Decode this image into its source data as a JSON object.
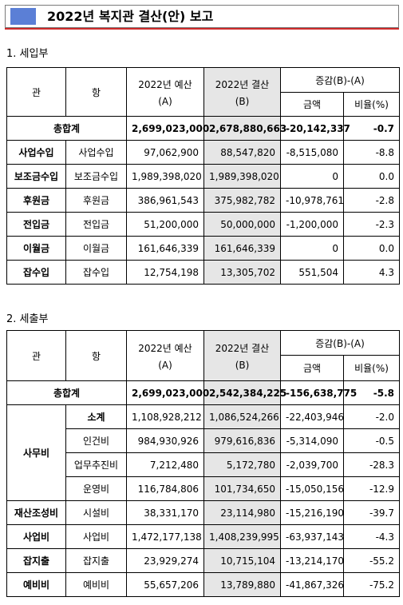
{
  "title": "2022년 복지관 결산(안) 보고",
  "headers": {
    "gwan": "관",
    "hang": "항",
    "budget_line1": "2022년 예산",
    "budget_line2": "(A)",
    "settle_line1": "2022년 결산",
    "settle_line2": "(B)",
    "diff": "증감(B)-(A)",
    "amount": "금액",
    "ratio": "비율(%)"
  },
  "revenue": {
    "title": "1. 세입부",
    "total": {
      "label": "총합계",
      "budget": "2,699,023,000",
      "settlement": "2,678,880,663",
      "amount": "-20,142,337",
      "ratio": "-0.7"
    },
    "rows": [
      {
        "gwan": "사업수입",
        "hang": "사업수입",
        "budget": "97,062,900",
        "settlement": "88,547,820",
        "amount": "-8,515,080",
        "ratio": "-8.8"
      },
      {
        "gwan": "보조금수입",
        "hang": "보조금수입",
        "budget": "1,989,398,020",
        "settlement": "1,989,398,020",
        "amount": "0",
        "ratio": "0.0"
      },
      {
        "gwan": "후원금",
        "hang": "후원금",
        "budget": "386,961,543",
        "settlement": "375,982,782",
        "amount": "-10,978,761",
        "ratio": "-2.8"
      },
      {
        "gwan": "전입금",
        "hang": "전입금",
        "budget": "51,200,000",
        "settlement": "50,000,000",
        "amount": "-1,200,000",
        "ratio": "-2.3"
      },
      {
        "gwan": "이월금",
        "hang": "이월금",
        "budget": "161,646,339",
        "settlement": "161,646,339",
        "amount": "0",
        "ratio": "0.0"
      },
      {
        "gwan": "잡수입",
        "hang": "잡수입",
        "budget": "12,754,198",
        "settlement": "13,305,702",
        "amount": "551,504",
        "ratio": "4.3"
      }
    ]
  },
  "expense": {
    "title": "2. 세출부",
    "total": {
      "label": "총합계",
      "budget": "2,699,023,000",
      "settlement": "2,542,384,225",
      "amount": "-156,638,775",
      "ratio": "-5.8"
    },
    "office": {
      "gwan": "사무비",
      "rows": [
        {
          "hang": "소계",
          "budget": "1,108,928,212",
          "settlement": "1,086,524,266",
          "amount": "-22,403,946",
          "ratio": "-2.0"
        },
        {
          "hang": "인건비",
          "budget": "984,930,926",
          "settlement": "979,616,836",
          "amount": "-5,314,090",
          "ratio": "-0.5"
        },
        {
          "hang": "업무추진비",
          "budget": "7,212,480",
          "settlement": "5,172,780",
          "amount": "-2,039,700",
          "ratio": "-28.3"
        },
        {
          "hang": "운영비",
          "budget": "116,784,806",
          "settlement": "101,734,650",
          "amount": "-15,050,156",
          "ratio": "-12.9"
        }
      ]
    },
    "rows": [
      {
        "gwan": "재산조성비",
        "hang": "시설비",
        "budget": "38,331,170",
        "settlement": "23,114,980",
        "amount": "-15,216,190",
        "ratio": "-39.7"
      },
      {
        "gwan": "사업비",
        "hang": "사업비",
        "budget": "1,472,177,138",
        "settlement": "1,408,239,995",
        "amount": "-63,937,143",
        "ratio": "-4.3"
      },
      {
        "gwan": "잡지출",
        "hang": "잡지출",
        "budget": "23,929,274",
        "settlement": "10,715,104",
        "amount": "-13,214,170",
        "ratio": "-55.2"
      },
      {
        "gwan": "예비비",
        "hang": "예비비",
        "budget": "55,657,206",
        "settlement": "13,789,880",
        "amount": "-41,867,326",
        "ratio": "-75.2"
      }
    ]
  }
}
